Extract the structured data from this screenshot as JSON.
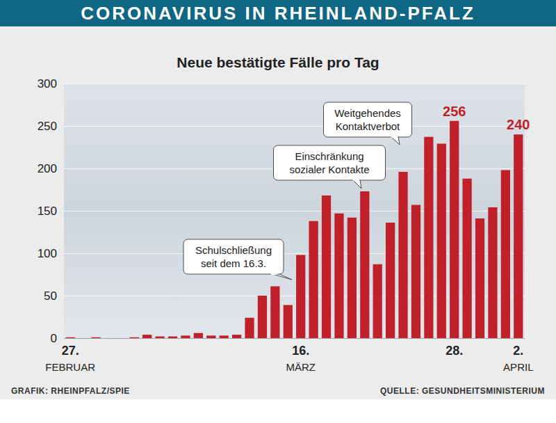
{
  "header": "CORONAVIRUS IN RHEINLAND-PFALZ",
  "chart_data": {
    "type": "bar",
    "title": "Neue bestätigte Fälle pro Tag",
    "categories": [
      "27.\nFEBRUAR",
      null,
      null,
      null,
      null,
      null,
      null,
      null,
      null,
      null,
      null,
      null,
      null,
      null,
      null,
      null,
      null,
      null,
      "16.\nMÄRZ",
      null,
      null,
      null,
      null,
      null,
      null,
      null,
      null,
      null,
      null,
      null,
      "28.",
      null,
      null,
      null,
      null,
      "2.\nAPRIL"
    ],
    "values": [
      1,
      0,
      1,
      0,
      0,
      1,
      4,
      2,
      2,
      3,
      6,
      3,
      3,
      4,
      24,
      50,
      61,
      39,
      98,
      138,
      168,
      147,
      142,
      173,
      87,
      136,
      196,
      157,
      237,
      229,
      256,
      188,
      141,
      154,
      198,
      240
    ],
    "value_labels": [
      null,
      null,
      null,
      null,
      null,
      null,
      null,
      null,
      null,
      null,
      null,
      null,
      null,
      null,
      null,
      null,
      null,
      null,
      null,
      null,
      null,
      null,
      null,
      null,
      null,
      null,
      null,
      null,
      null,
      null,
      "256",
      null,
      null,
      null,
      null,
      "240"
    ],
    "data_labels": true,
    "color": "#c0202a",
    "ylim": [
      0,
      300
    ],
    "yticks": [
      0,
      50,
      100,
      150,
      200,
      250,
      300
    ],
    "grid": true,
    "annotations": [
      "Schulschließung\nseit dem 16.3.",
      "Einschränkung\nsozialer Kontakte",
      "Weitgehendes\nKontaktverbot"
    ]
  },
  "credit": "GRAFIK: RHEINPFALZ/SPIE",
  "source": "QUELLE: GESUNDHEITSMINISTERIUM"
}
